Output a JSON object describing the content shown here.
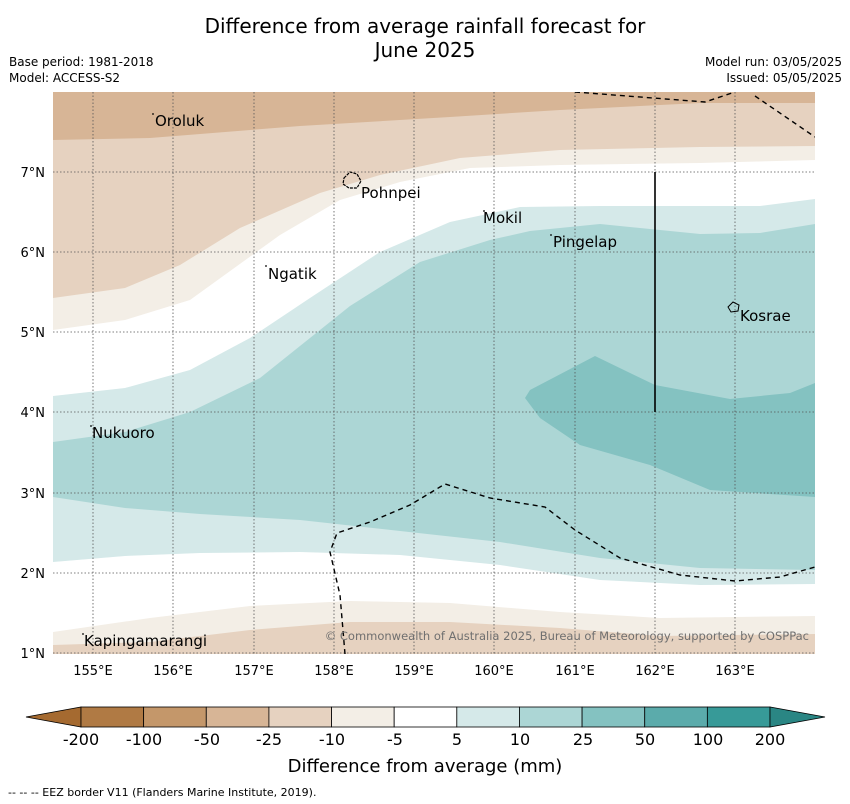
{
  "header": {
    "title_line1": "Difference from average rainfall forecast for",
    "title_line2": "June 2025",
    "base_period": "Base period: 1981-2018",
    "model": "Model: ACCESS-S2",
    "model_run": "Model run: 03/05/2025",
    "issued": "Issued: 05/05/2025"
  },
  "map": {
    "lon_ticks": [
      "155°E",
      "156°E",
      "157°E",
      "158°E",
      "159°E",
      "160°E",
      "161°E",
      "162°E",
      "163°E"
    ],
    "lat_ticks": [
      "7°N",
      "6°N",
      "5°N",
      "4°N",
      "3°N",
      "2°N",
      "1°N"
    ],
    "places": [
      "Oroluk",
      "Pohnpei",
      "Mokil",
      "Pingelap",
      "Ngatik",
      "Kosrae",
      "Nukuoro",
      "Kapingamarangi"
    ],
    "copyright": "© Commonwealth of Australia 2025, Bureau of Meteorology, supported by COSPPac"
  },
  "colorbar": {
    "ticks": [
      "-200",
      "-100",
      "-50",
      "-25",
      "-10",
      "-5",
      "5",
      "10",
      "25",
      "50",
      "100",
      "200"
    ],
    "colors": [
      "#a56a30",
      "#b07a44",
      "#c4976a",
      "#d7b596",
      "#e6d2c0",
      "#f3eee6",
      "#ffffff",
      "#d5e9e9",
      "#acd6d5",
      "#84c2c1",
      "#5babab",
      "#379a98",
      "#2a8684"
    ],
    "label": "Difference from average (mm)"
  },
  "legend": {
    "eez": "--  --  -- EEZ border V11 (Flanders Marine Institute, 2019)."
  }
}
